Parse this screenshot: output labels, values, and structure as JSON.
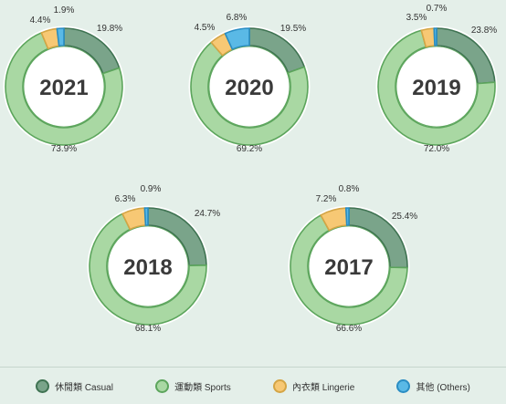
{
  "chart_data": {
    "type": "donut",
    "series_names": [
      "休閒類 Casual",
      "運動類 Sports",
      "內衣類 Lingerie",
      "其他 (Others)"
    ],
    "colors": {
      "Casual": "#7aa48a",
      "Sports": "#a9d8a3",
      "Lingerie": "#f7c874",
      "Others": "#5ab9e6",
      "casual_border": "#3f7352",
      "sports_border": "#5ca55c",
      "lingerie_border": "#d4a545",
      "others_border": "#2a8dc3"
    },
    "charts": [
      {
        "year": "2021",
        "values": {
          "Casual": 19.8,
          "Sports": 73.9,
          "Lingerie": 4.4,
          "Others": 1.9
        },
        "labels": {
          "Casual": "19.8%",
          "Sports": "73.9%",
          "Lingerie": "4.4%",
          "Others": "1.9%"
        }
      },
      {
        "year": "2020",
        "values": {
          "Casual": 19.5,
          "Sports": 69.2,
          "Lingerie": 4.5,
          "Others": 6.8
        },
        "labels": {
          "Casual": "19.5%",
          "Sports": "69.2%",
          "Lingerie": "4.5%",
          "Others": "6.8%"
        }
      },
      {
        "year": "2019",
        "values": {
          "Casual": 23.8,
          "Sports": 72.0,
          "Lingerie": 3.5,
          "Others": 0.7
        },
        "labels": {
          "Casual": "23.8%",
          "Sports": "72.0%",
          "Lingerie": "3.5%",
          "Others": "0.7%"
        }
      },
      {
        "year": "2018",
        "values": {
          "Casual": 24.7,
          "Sports": 68.1,
          "Lingerie": 6.3,
          "Others": 0.9
        },
        "labels": {
          "Casual": "24.7%",
          "Sports": "68.1%",
          "Lingerie": "6.3%",
          "Others": "0.9%"
        }
      },
      {
        "year": "2017",
        "values": {
          "Casual": 25.4,
          "Sports": 66.6,
          "Lingerie": 7.2,
          "Others": 0.8
        },
        "labels": {
          "Casual": "25.4%",
          "Sports": "66.6%",
          "Lingerie": "7.2%",
          "Others": "0.8%"
        }
      }
    ]
  },
  "legend": [
    {
      "key": "Casual",
      "label": "休閒類 Casual"
    },
    {
      "key": "Sports",
      "label": "運動類 Sports"
    },
    {
      "key": "Lingerie",
      "label": "內衣類 Lingerie"
    },
    {
      "key": "Others",
      "label": "其他 (Others)"
    }
  ]
}
